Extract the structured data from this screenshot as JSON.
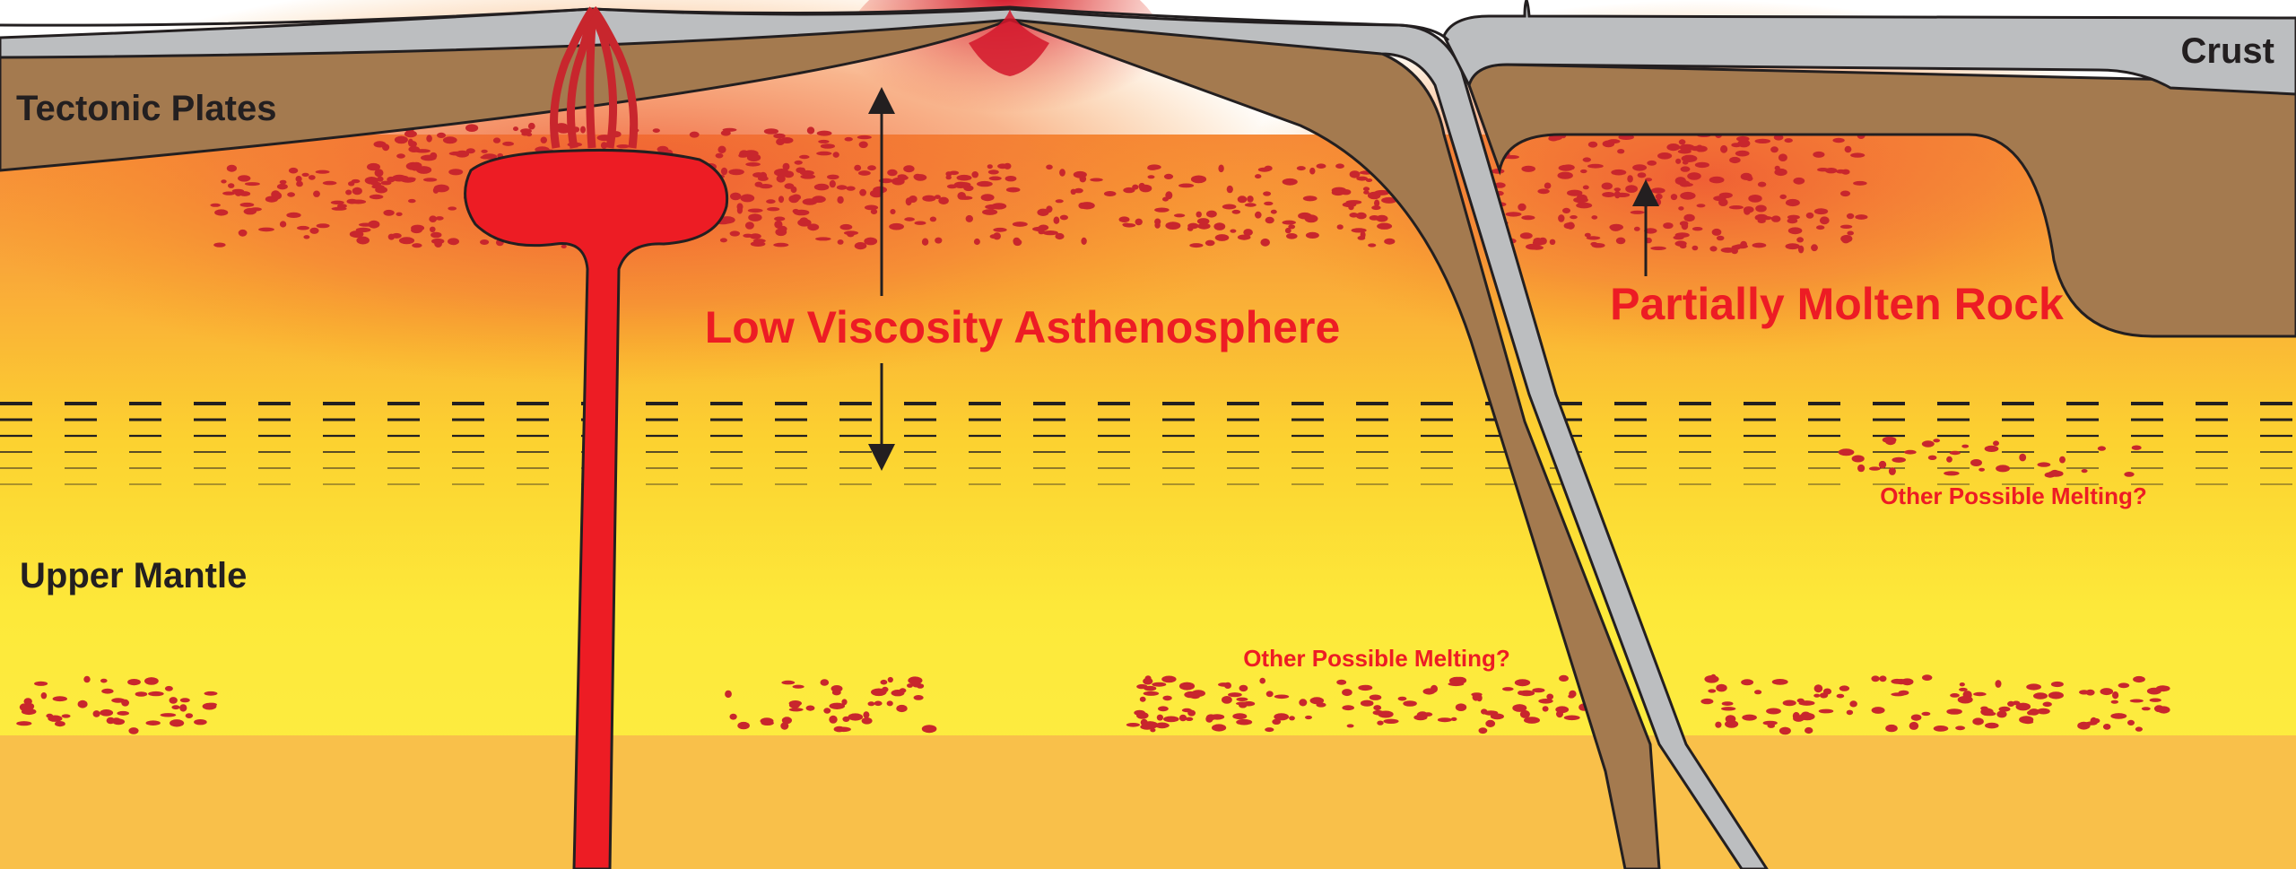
{
  "labels": {
    "tectonic_plates": "Tectonic Plates",
    "crust": "Crust",
    "upper_mantle": "Upper Mantle",
    "low_viscosity": "Low Viscosity Asthenosphere",
    "partially_molten": "Partially Molten Rock",
    "other_melting_1": "Other Possible Melting?",
    "other_melting_2": "Other Possible Melting?"
  },
  "colors": {
    "plate": "#a47a4f",
    "crust": "#bcbec0",
    "outline": "#231f20",
    "magma": "#ed1c24",
    "melt_dots": "#c8262d",
    "mantle_yellow": "#fde93a",
    "mantle_orange": "#f7941d",
    "lower_band": "#f9c04a",
    "label_dark": "#231f20",
    "label_red": "#ed1c24"
  }
}
